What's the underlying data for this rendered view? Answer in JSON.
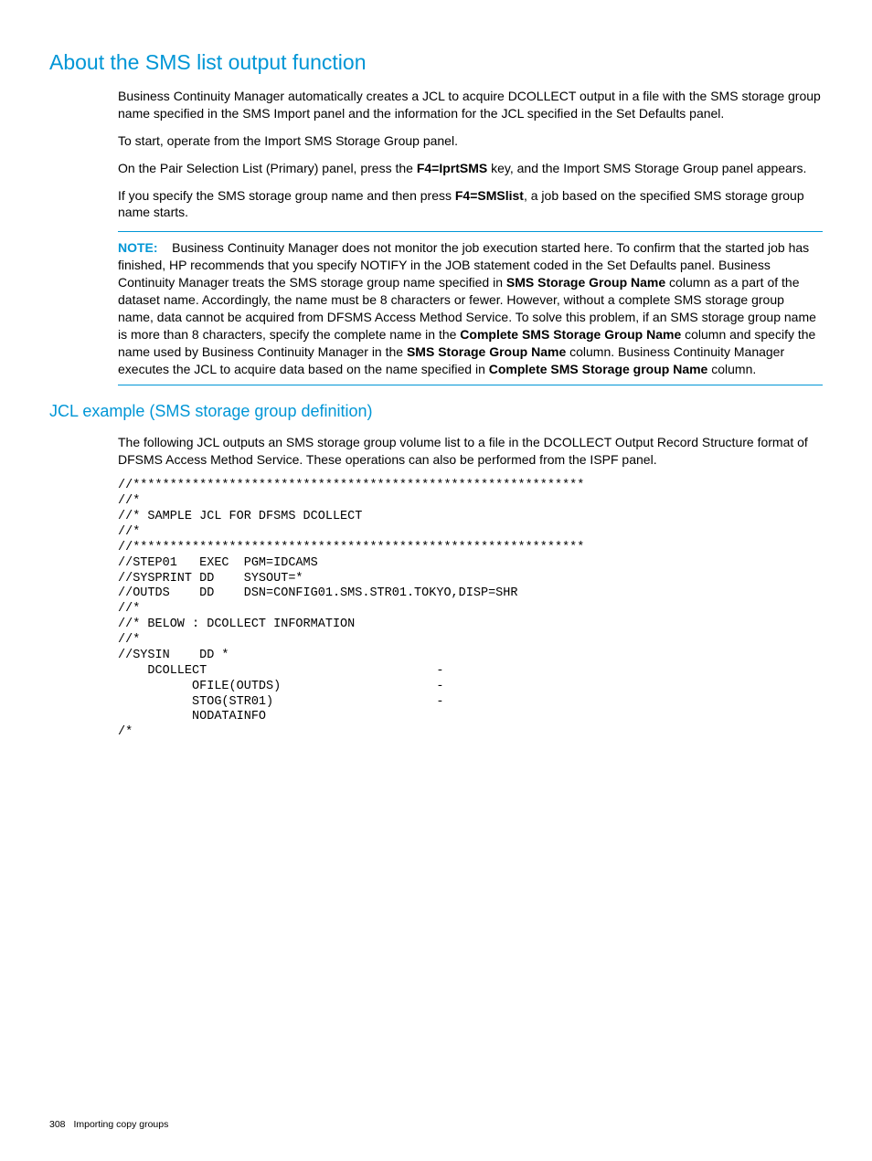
{
  "heading1": "About the SMS list output function",
  "p1": "Business Continuity Manager automatically creates a JCL to acquire DCOLLECT output in a file with the SMS storage group name specified in the SMS Import panel and the information for the JCL specified in the Set Defaults panel.",
  "p2": "To start, operate from the Import SMS Storage Group panel.",
  "p3a": "On the Pair Selection List (Primary) panel, press the ",
  "p3b": "F4=IprtSMS",
  "p3c": " key, and the Import SMS Storage Group panel appears.",
  "p4a": "If you specify the SMS storage group name and then press ",
  "p4b": "F4=SMSlist",
  "p4c": ", a job based on the specified SMS storage group name starts.",
  "noteLabel": "NOTE:",
  "note_a": " Business Continuity Manager does not monitor the job execution started here. To confirm that the started job has finished, HP recommends that you specify NOTIFY in the JOB statement coded in the Set Defaults panel. Business Continuity Manager treats the SMS storage group name specified in ",
  "note_b": "SMS Storage Group Name",
  "note_c": " column as a part of the dataset name. Accordingly, the name must be 8 characters or fewer. However, without a complete SMS storage group name, data cannot be acquired from DFSMS Access Method Service. To solve this problem, if an SMS storage group name is more than 8 characters, specify the complete name in the ",
  "note_d": "Complete SMS Storage Group Name",
  "note_e": " column and specify the name used by Business Continuity Manager in the ",
  "note_f": "SMS Storage Group Name",
  "note_g": " column. Business Continuity Manager executes the JCL to acquire data based on the name specified in ",
  "note_h": "Complete SMS Storage group Name",
  "note_i": " column.",
  "heading2": "JCL example (SMS storage group definition)",
  "p5": "The following JCL outputs an SMS storage group volume list to a file in the DCOLLECT Output Record Structure format of DFSMS Access Method Service. These operations can also be performed from the ISPF panel.",
  "code": "//*************************************************************\n//*\n//* SAMPLE JCL FOR DFSMS DCOLLECT\n//*\n//*************************************************************\n//STEP01   EXEC  PGM=IDCAMS\n//SYSPRINT DD    SYSOUT=*\n//OUTDS    DD    DSN=CONFIG01.SMS.STR01.TOKYO,DISP=SHR\n//*\n//* BELOW : DCOLLECT INFORMATION\n//*\n//SYSIN    DD *\n    DCOLLECT                               -\n          OFILE(OUTDS)                     -\n          STOG(STR01)                      -\n          NODATAINFO\n/*",
  "footer_page": "308",
  "footer_text": "Importing copy groups"
}
